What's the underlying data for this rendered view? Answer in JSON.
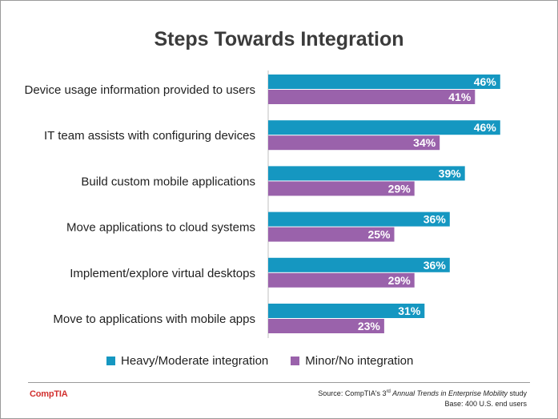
{
  "chart_data": {
    "type": "bar",
    "orientation": "horizontal",
    "title": "Steps Towards Integration",
    "categories": [
      "Device usage information provided to users",
      "IT team assists with configuring devices",
      "Build custom mobile applications",
      "Move applications to cloud systems",
      "Implement/explore virtual desktops",
      "Move to applications with mobile apps"
    ],
    "series": [
      {
        "name": "Heavy/Moderate integration",
        "color": "#1597c1",
        "values": [
          46,
          46,
          39,
          36,
          36,
          31
        ]
      },
      {
        "name": "Minor/No integration",
        "color": "#9a62ab",
        "values": [
          41,
          34,
          29,
          25,
          29,
          23
        ]
      }
    ],
    "value_suffix": "%",
    "xlim": [
      0,
      50
    ],
    "grid": false,
    "legend_position": "bottom"
  },
  "footer": {
    "logo": "CompTIA",
    "source_prefix": "Source: CompTIA's ",
    "source_ordinal": "3",
    "source_sup": "rd",
    "source_italic": " Annual Trends in Enterprise Mobility",
    "source_suffix": " study",
    "base": "Base: 400 U.S. end users"
  }
}
